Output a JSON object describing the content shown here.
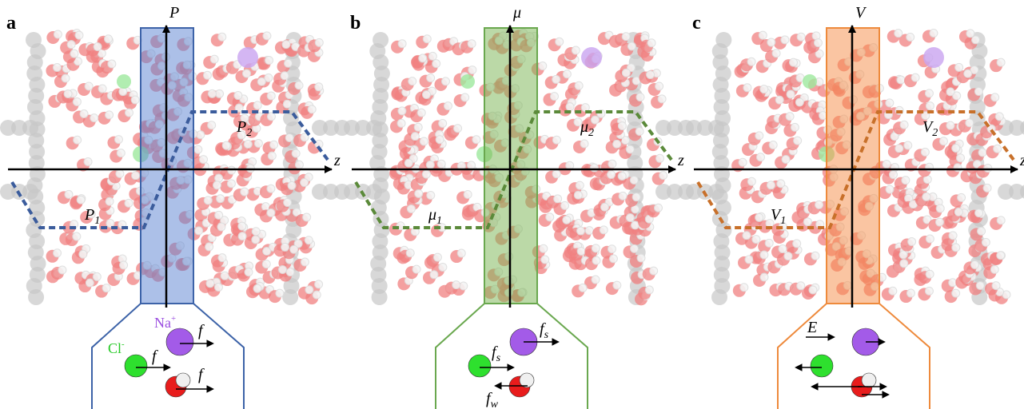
{
  "panels": [
    {
      "letter": "a",
      "axis_y": "P",
      "axis_x": "z",
      "level_low": {
        "base": "P",
        "sub": "1"
      },
      "level_high": {
        "base": "P",
        "sub": "2"
      },
      "inset_labels": [
        {
          "base": "Na",
          "sup": "+"
        },
        {
          "base": "Cl",
          "sup": "-"
        },
        {
          "base": "f"
        },
        {
          "base": "f"
        },
        {
          "base": "f"
        }
      ]
    },
    {
      "letter": "b",
      "axis_y": "μ",
      "axis_x": "z",
      "level_low": {
        "base": "μ",
        "sub": "1"
      },
      "level_high": {
        "base": "μ",
        "sub": "2"
      },
      "inset_labels": [
        {
          "base": "f",
          "sub": "s"
        },
        {
          "base": "f",
          "sub": "s"
        },
        {
          "base": "f",
          "sub": "w"
        }
      ]
    },
    {
      "letter": "c",
      "axis_y": "V",
      "axis_x": "z",
      "level_low": {
        "base": "V",
        "sub": "1"
      },
      "level_high": {
        "base": "V",
        "sub": "2"
      },
      "inset_labels": [
        {
          "base": "E"
        }
      ]
    }
  ]
}
